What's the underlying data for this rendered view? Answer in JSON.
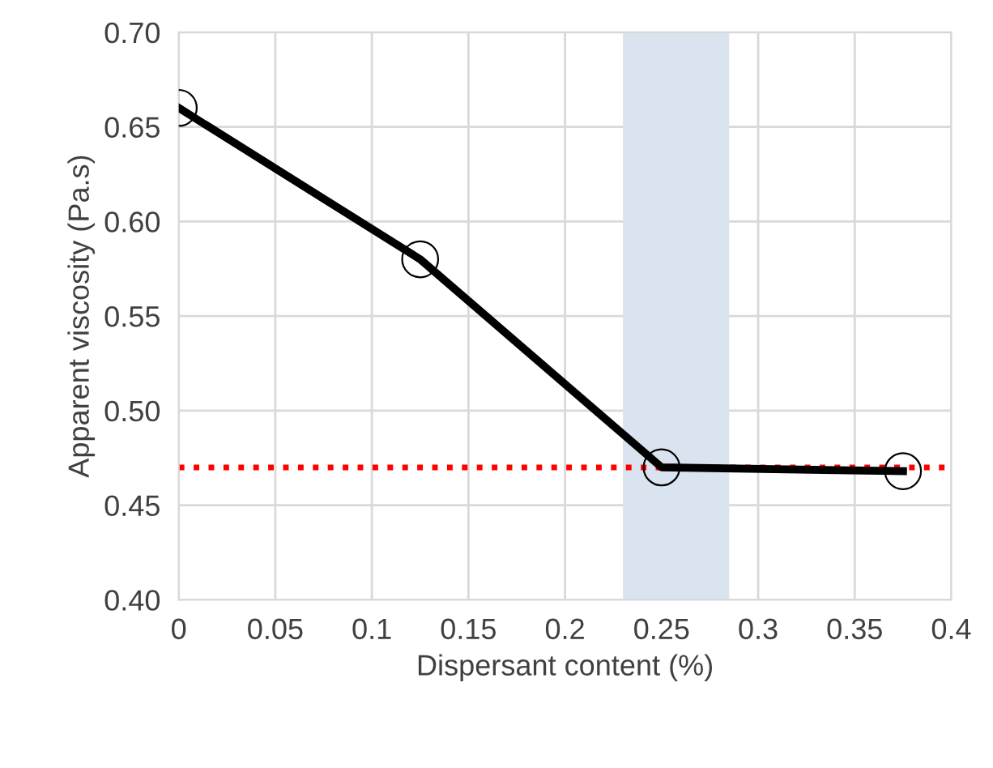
{
  "chart_data": {
    "type": "line",
    "xlabel": "Dispersant content (%)",
    "ylabel": "Apparent viscosity (Pa.s)",
    "x": [
      0,
      0.125,
      0.25,
      0.375
    ],
    "series": [
      {
        "color": "#000000",
        "values": [
          0.66,
          0.58,
          0.47,
          0.468
        ]
      }
    ],
    "marker": "circle",
    "line_style": "solid",
    "grid": true,
    "legend": false,
    "xlim": [
      0,
      0.4
    ],
    "xticks": [
      0,
      0.05,
      0.1,
      0.15,
      0.2,
      0.25,
      0.3,
      0.35,
      0.4
    ],
    "ylim": [
      0.4,
      0.7
    ],
    "yticks": [
      {
        "value": 0.4,
        "label": "0.40"
      },
      {
        "value": 0.45,
        "label": "0.45"
      },
      {
        "value": 0.5,
        "label": "0.50"
      },
      {
        "value": 0.55,
        "label": "0.55"
      },
      {
        "value": 0.6,
        "label": "0.60"
      },
      {
        "value": 0.65,
        "label": "0.65"
      },
      {
        "value": 0.7,
        "label": "0.70"
      }
    ],
    "ref_lines": [
      {
        "axis": "y",
        "value": 0.47,
        "color": "#ff0000",
        "line_style": "dotted"
      }
    ],
    "bands": [
      {
        "axis": "x",
        "from": 0.23,
        "to": 0.285,
        "color": "#dae3f0"
      }
    ]
  }
}
